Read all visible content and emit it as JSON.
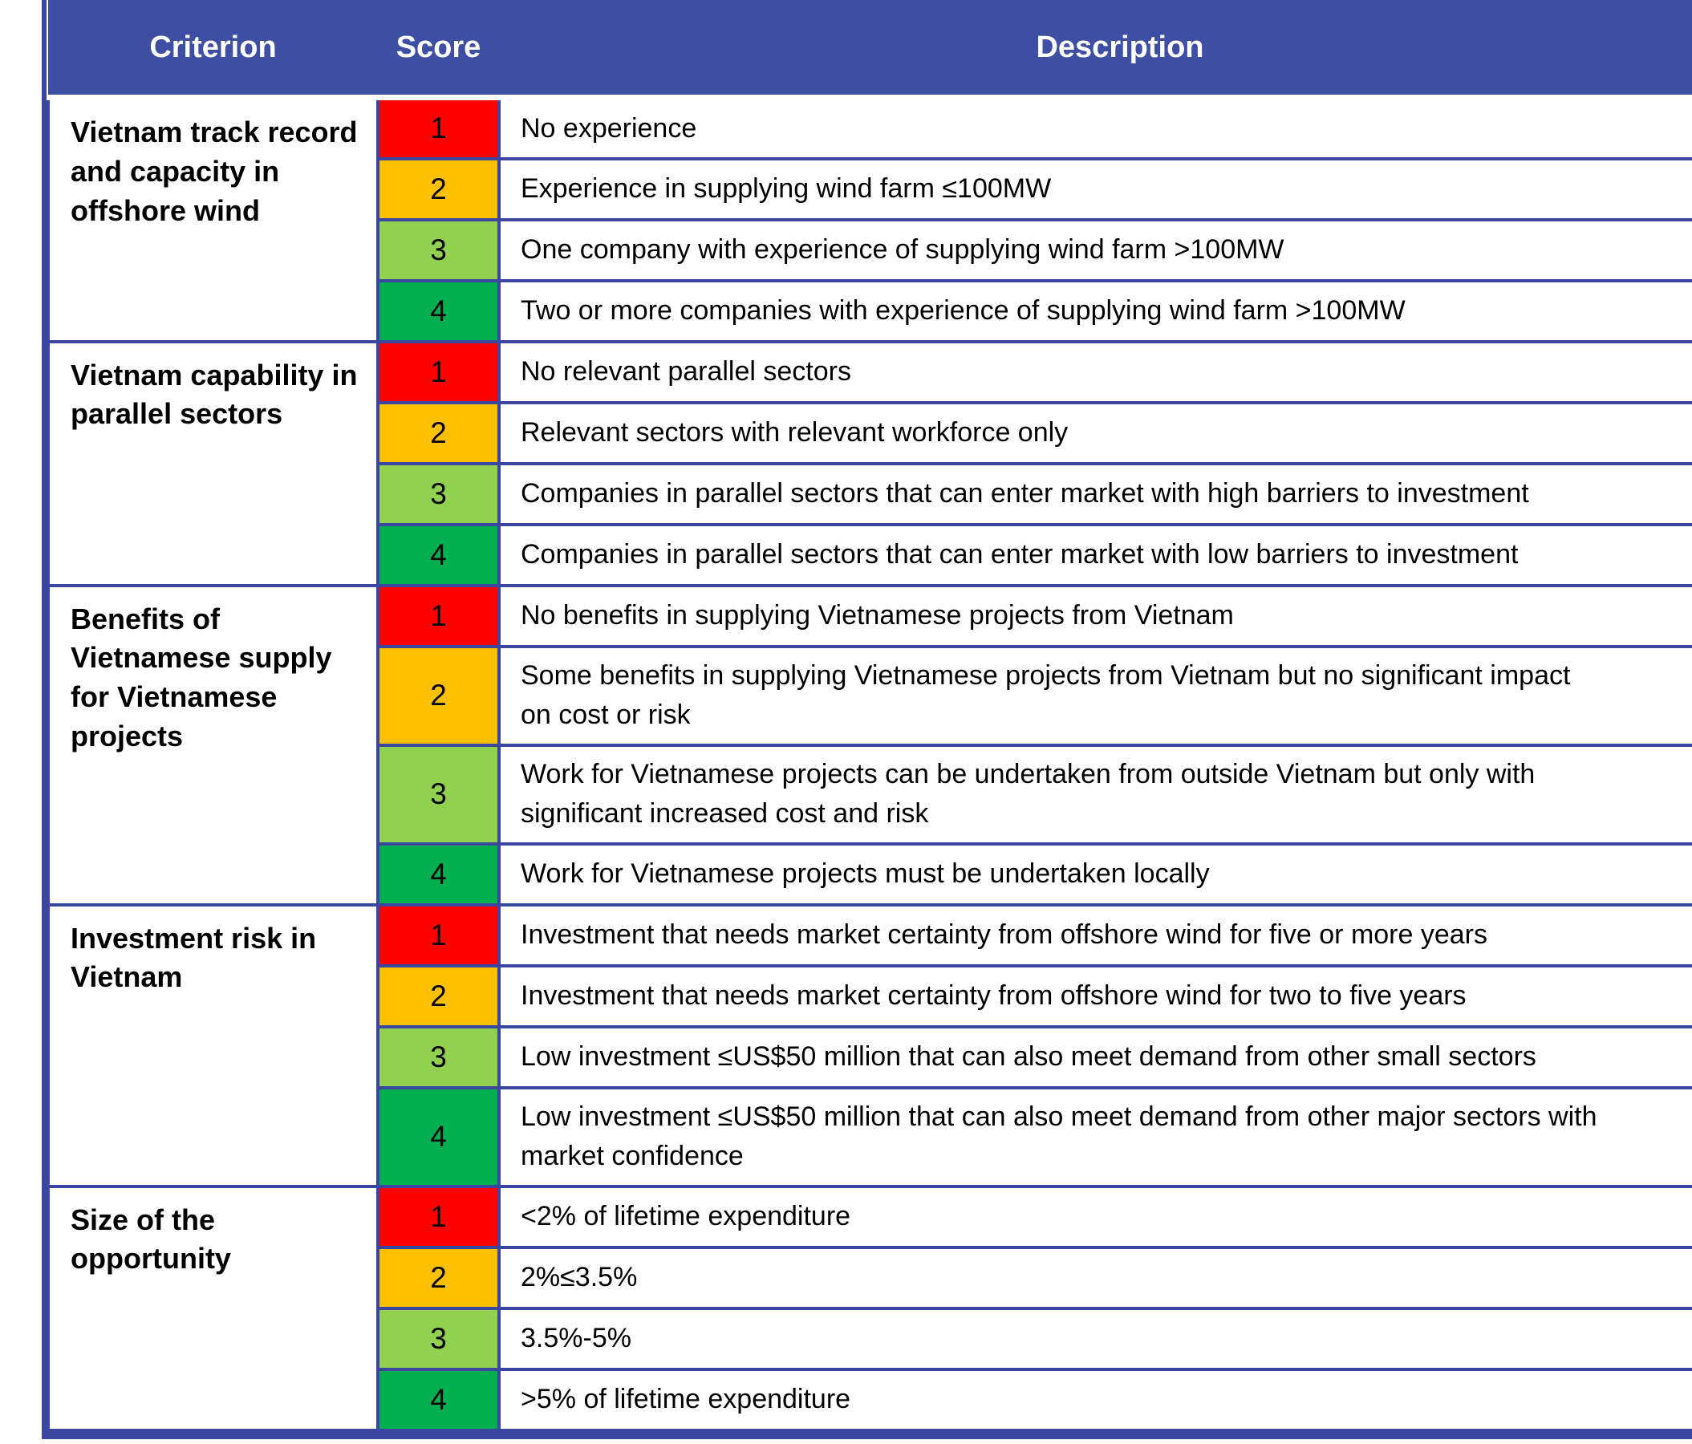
{
  "colors": {
    "header_bg": "#3E4EA3",
    "header_text": "#FFFFFF",
    "border": "#3A46A0",
    "score_1": "#FF0000",
    "score_2": "#FFC000",
    "score_3": "#92D050",
    "score_4": "#00B050"
  },
  "table": {
    "headers": [
      "Criterion",
      "Score",
      "Description"
    ],
    "groups": [
      {
        "criterion": "Vietnam track record and capacity in offshore wind",
        "rows": [
          {
            "score": "1",
            "description": "No experience"
          },
          {
            "score": "2",
            "description": "Experience in supplying wind farm ≤100MW"
          },
          {
            "score": "3",
            "description": "One company with experience of supplying wind farm >100MW"
          },
          {
            "score": "4",
            "description": "Two or more companies with experience of supplying wind farm >100MW"
          }
        ]
      },
      {
        "criterion": "Vietnam capability in parallel sectors",
        "rows": [
          {
            "score": "1",
            "description": "No relevant parallel sectors"
          },
          {
            "score": "2",
            "description": "Relevant sectors with relevant workforce only"
          },
          {
            "score": "3",
            "description": "Companies in parallel sectors that can enter market with high barriers to investment"
          },
          {
            "score": "4",
            "description": "Companies in parallel sectors that can enter market with low barriers to investment"
          }
        ]
      },
      {
        "criterion": "Benefits of Vietnamese supply for Vietnamese projects",
        "rows": [
          {
            "score": "1",
            "description": "No benefits in supplying Vietnamese projects from Vietnam"
          },
          {
            "score": "2",
            "description": "Some benefits in supplying Vietnamese projects from Vietnam but no significant impact\non cost or risk"
          },
          {
            "score": "3",
            "description": "Work for Vietnamese projects can be undertaken from outside Vietnam but only with\nsignificant increased cost and risk"
          },
          {
            "score": "4",
            "description": "Work for Vietnamese projects must be undertaken locally"
          }
        ]
      },
      {
        "criterion": "Investment risk in Vietnam",
        "rows": [
          {
            "score": "1",
            "description": "Investment that needs market certainty from offshore wind for five or more years"
          },
          {
            "score": "2",
            "description": "Investment that needs market certainty from offshore wind for two to five years"
          },
          {
            "score": "3",
            "description": "Low investment ≤US$50 million that can also meet demand from other small sectors"
          },
          {
            "score": "4",
            "description": "Low investment ≤US$50 million that can also meet demand from other major sectors with\nmarket confidence"
          }
        ]
      },
      {
        "criterion": "Size of the opportunity",
        "rows": [
          {
            "score": "1",
            "description": "<2% of lifetime expenditure"
          },
          {
            "score": "2",
            "description": "2%≤3.5%"
          },
          {
            "score": "3",
            "description": "3.5%-5%"
          },
          {
            "score": "4",
            "description": ">5% of lifetime expenditure"
          }
        ]
      }
    ]
  }
}
